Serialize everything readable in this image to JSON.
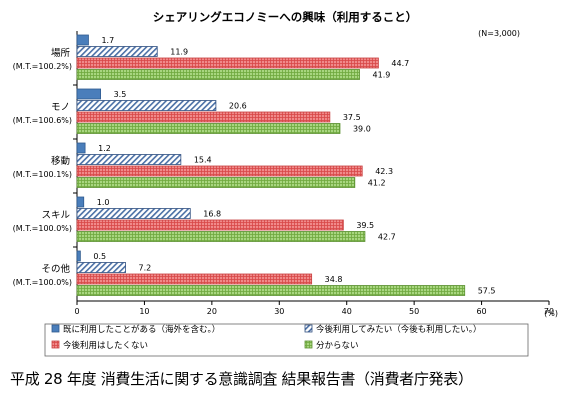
{
  "chart_data": {
    "type": "bar",
    "orientation": "horizontal",
    "title": "シェアリングエコノミーへの興味（利用すること）",
    "note": "(N=3,000)",
    "xunit": "(%)",
    "xlim": [
      0,
      70
    ],
    "xticks": [
      "0",
      "10",
      "20",
      "30",
      "40",
      "50",
      "60",
      "70"
    ],
    "grid": false,
    "legend_position": "bottom",
    "categories": [
      {
        "label": "場所",
        "mt": "(M.T.=100.2%)"
      },
      {
        "label": "モノ",
        "mt": "(M.T.=100.6%)"
      },
      {
        "label": "移動",
        "mt": "(M.T.=100.1%)"
      },
      {
        "label": "スキル",
        "mt": "(M.T.=100.0%)"
      },
      {
        "label": "その他",
        "mt": "(M.T.=100.0%)"
      }
    ],
    "series": [
      {
        "name": "既に利用したことがある（海外を含む。）",
        "values": [
          1.7,
          3.5,
          1.2,
          1.0,
          0.5
        ],
        "labels": [
          "1.7",
          "3.5",
          "1.2",
          "1.0",
          "0.5"
        ],
        "color": "#4a7ebb",
        "pattern": "solid"
      },
      {
        "name": "今後利用してみたい（今後も利用したい。）",
        "values": [
          11.9,
          20.6,
          15.4,
          16.8,
          7.2
        ],
        "labels": [
          "11.9",
          "20.6",
          "15.4",
          "16.8",
          "7.2"
        ],
        "color": "#4a6fa5",
        "pattern": "diagonal"
      },
      {
        "name": "今後利用はしたくない",
        "values": [
          44.7,
          37.5,
          42.3,
          39.5,
          34.8
        ],
        "labels": [
          "44.7",
          "37.5",
          "42.3",
          "39.5",
          "34.8"
        ],
        "color": "#e36c6c",
        "pattern": "grid"
      },
      {
        "name": "分からない",
        "values": [
          41.9,
          39.0,
          41.2,
          42.7,
          57.5
        ],
        "labels": [
          "41.9",
          "39.0",
          "41.2",
          "42.7",
          "57.5"
        ],
        "color": "#8fc65c",
        "pattern": "grid"
      }
    ]
  },
  "footer": "平成 28 年度 消費生活に関する意識調査 結果報告書（消費者庁発表）"
}
